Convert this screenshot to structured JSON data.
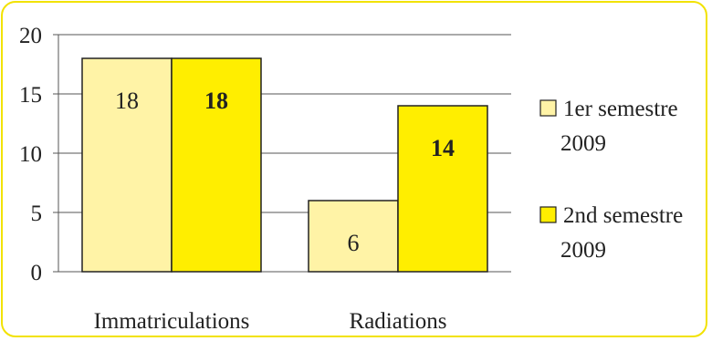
{
  "chart_data": {
    "type": "bar",
    "title": "",
    "xlabel": "",
    "ylabel": "",
    "ylim": [
      0,
      20
    ],
    "yticks": [
      0,
      5,
      10,
      15,
      20
    ],
    "grid": "horizontal",
    "legend_position": "right",
    "categories": [
      "Immatriculations",
      "Radiations"
    ],
    "series": [
      {
        "name": "1er semestre 2009",
        "legend_lines": [
          "1er semestre",
          "2009"
        ],
        "values": [
          18,
          6
        ],
        "color": "#fff3a6",
        "label_weight": "normal"
      },
      {
        "name": "2nd semestre 2009",
        "legend_lines": [
          "2nd semestre",
          "2009"
        ],
        "values": [
          18,
          14
        ],
        "color": "#ffee00",
        "label_weight": "bold"
      }
    ]
  },
  "colors": {
    "frame_border": "#f2e200",
    "bar_outline": "#222222",
    "gridline": "#555555"
  }
}
